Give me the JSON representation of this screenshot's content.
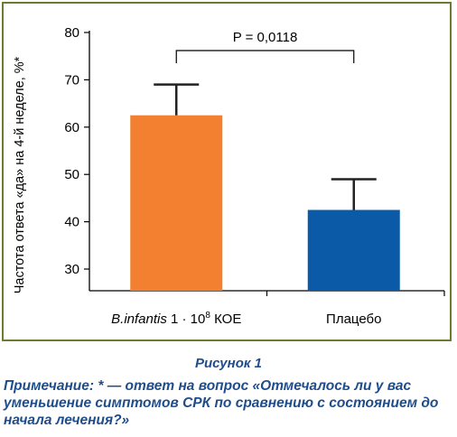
{
  "chart_data": {
    "type": "bar",
    "categories": [
      "B.infantis 1 · 10⁸ КОЕ",
      "Плацебо"
    ],
    "category_parts": [
      {
        "italic": "B.infantis",
        "rest": " 1 · 10",
        "sup": "8",
        "tail": " КОЕ"
      },
      {
        "italic": "",
        "rest": "Плацебо",
        "sup": "",
        "tail": ""
      }
    ],
    "values": [
      62.5,
      42.5
    ],
    "error_upper": [
      69,
      49
    ],
    "ylabel": "Частота ответа «да» на 4-й неделе, %*",
    "ylim": [
      25,
      80
    ],
    "yticks": [
      30,
      40,
      50,
      60,
      70,
      80
    ],
    "bar_colors": [
      "#f28030",
      "#0a5aa8"
    ],
    "annotation": "P = 0,0118",
    "grid": false
  },
  "caption": "Рисунок 1",
  "note": {
    "head": "Примечание:",
    "text": " * — ответ на вопрос «Отмечалось ли у вас уменьшение симптомов СРК по сравнению с состоянием до начала лечения?»"
  }
}
